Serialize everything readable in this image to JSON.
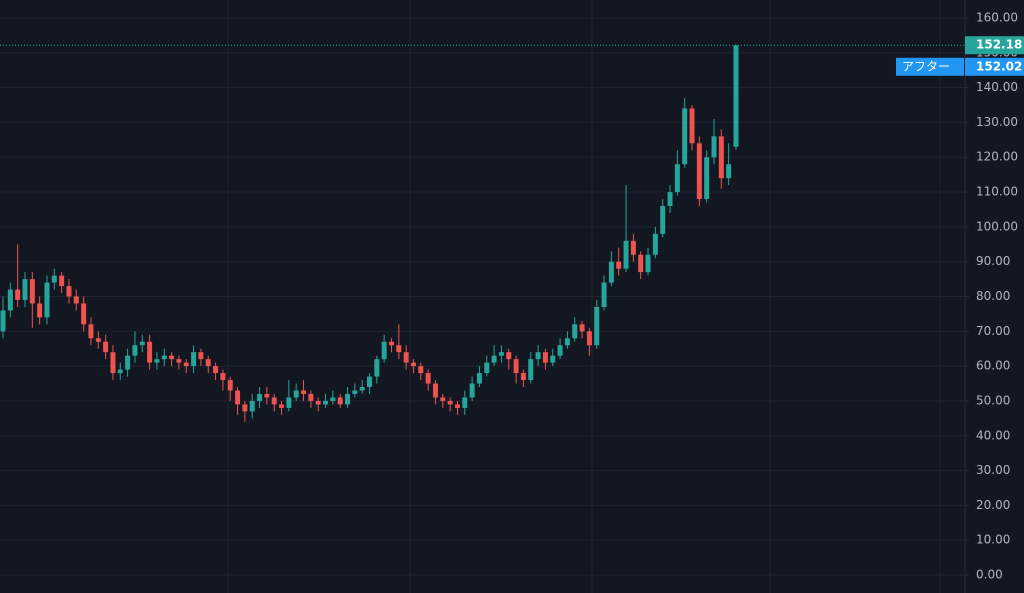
{
  "chart_data": {
    "type": "candlestick",
    "categories": [
      null,
      null,
      null,
      null,
      null,
      null,
      null,
      null,
      null,
      null,
      null,
      null,
      null,
      null,
      null,
      null,
      null,
      null,
      null,
      null,
      null,
      null,
      null,
      null,
      null,
      null,
      null,
      null,
      null,
      null,
      null,
      null,
      null,
      null,
      null,
      null,
      null,
      null,
      null,
      null,
      null,
      null,
      null,
      null,
      null,
      null,
      null,
      null,
      null,
      null,
      null,
      null,
      null,
      null,
      null,
      null,
      null,
      null,
      null,
      null,
      null,
      null,
      null,
      null,
      null,
      null,
      null,
      null,
      null,
      null,
      null,
      null,
      null,
      null,
      null,
      null,
      null,
      null,
      null,
      null,
      null,
      null,
      null,
      null,
      null,
      null,
      null,
      null,
      null,
      null,
      null,
      null,
      null,
      null,
      null,
      null,
      null,
      null,
      null,
      null,
      null
    ],
    "open": [
      70,
      76,
      82,
      79,
      85,
      78,
      74,
      84,
      86,
      83,
      80,
      78,
      72,
      68,
      67,
      64,
      58,
      59,
      63,
      66,
      67,
      61,
      62,
      63,
      62,
      61,
      60,
      64,
      62,
      60,
      58,
      56,
      53,
      49,
      47,
      50,
      52,
      51,
      49,
      48,
      51,
      53,
      52,
      50,
      49,
      50,
      51,
      49,
      52,
      53,
      54,
      57,
      62,
      67,
      66,
      64,
      61,
      60,
      58,
      55,
      51,
      50,
      49,
      48,
      51,
      55,
      58,
      61,
      63,
      64,
      62,
      58,
      56,
      62,
      64,
      61,
      63,
      66,
      68,
      72,
      70,
      66,
      77,
      84,
      90,
      88,
      96,
      92,
      87,
      92,
      98,
      106,
      110,
      118,
      134,
      124,
      108,
      120,
      126,
      114,
      123
    ],
    "high": [
      80,
      84,
      95,
      87,
      87,
      80,
      86,
      88,
      87,
      85,
      82,
      80,
      74,
      70,
      69,
      66,
      61,
      65,
      70,
      69,
      69,
      64,
      65,
      64,
      63,
      62,
      66,
      65,
      63,
      61,
      59,
      57,
      54,
      50,
      52,
      54,
      54,
      52,
      50,
      56,
      55,
      56,
      53,
      51,
      52,
      53,
      52,
      54,
      55,
      56,
      58,
      63,
      69,
      68,
      72,
      66,
      62,
      61,
      59,
      56,
      52,
      51,
      50,
      53,
      57,
      60,
      63,
      66,
      66,
      65,
      63,
      59,
      64,
      66,
      65,
      65,
      68,
      70,
      74,
      73,
      71,
      79,
      86,
      93,
      94,
      112,
      98,
      93,
      94,
      100,
      108,
      112,
      122,
      137,
      135,
      126,
      122,
      131,
      128,
      124,
      152.18
    ],
    "low": [
      68,
      74,
      77,
      77,
      71,
      72,
      72,
      82,
      81,
      78,
      76,
      70,
      66,
      65,
      62,
      56,
      56,
      57,
      61,
      64,
      59,
      59,
      60,
      60,
      59,
      58,
      58,
      60,
      58,
      56,
      53,
      50,
      46,
      44,
      45,
      48,
      49,
      47,
      46,
      47,
      50,
      50,
      48,
      47,
      48,
      49,
      48,
      48,
      51,
      52,
      52,
      55,
      61,
      64,
      62,
      59,
      58,
      56,
      53,
      49,
      48,
      47,
      46,
      46,
      50,
      54,
      57,
      60,
      61,
      59,
      55,
      54,
      55,
      60,
      59,
      60,
      62,
      65,
      67,
      68,
      63,
      65,
      76,
      83,
      86,
      87,
      90,
      85,
      86,
      91,
      97,
      104,
      109,
      117,
      122,
      106,
      107,
      118,
      111,
      112,
      122
    ],
    "close": [
      76,
      82,
      79,
      85,
      78,
      74,
      84,
      86,
      83,
      80,
      78,
      72,
      68,
      67,
      64,
      58,
      59,
      63,
      66,
      67,
      61,
      62,
      63,
      62,
      61,
      60,
      64,
      62,
      60,
      58,
      56,
      53,
      49,
      47,
      50,
      52,
      51,
      49,
      48,
      51,
      53,
      52,
      50,
      49,
      50,
      51,
      49,
      52,
      53,
      54,
      57,
      62,
      67,
      66,
      64,
      61,
      60,
      58,
      55,
      51,
      50,
      49,
      48,
      51,
      55,
      58,
      61,
      63,
      64,
      62,
      58,
      56,
      62,
      64,
      61,
      63,
      66,
      68,
      72,
      70,
      66,
      77,
      84,
      90,
      88,
      96,
      92,
      87,
      92,
      98,
      106,
      110,
      118,
      134,
      124,
      108,
      120,
      126,
      114,
      118,
      152.18
    ],
    "up_color": "#26a69a",
    "down_color": "#ef5350",
    "ylim": [
      -5.17,
      165.17
    ],
    "yticks": [
      {
        "value": 0,
        "label": "0.00"
      },
      {
        "value": 10,
        "label": "10.00"
      },
      {
        "value": 20,
        "label": "20.00"
      },
      {
        "value": 30,
        "label": "30.00"
      },
      {
        "value": 40,
        "label": "40.00"
      },
      {
        "value": 50,
        "label": "50.00"
      },
      {
        "value": 60,
        "label": "60.00"
      },
      {
        "value": 70,
        "label": "70.00"
      },
      {
        "value": 80,
        "label": "80.00"
      },
      {
        "value": 90,
        "label": "90.00"
      },
      {
        "value": 100,
        "label": "100.00"
      },
      {
        "value": 110,
        "label": "110.00"
      },
      {
        "value": 120,
        "label": "120.00"
      },
      {
        "value": 130,
        "label": "130.00"
      },
      {
        "value": 140,
        "label": "140.00"
      },
      {
        "value": 150,
        "label": "150.00"
      },
      {
        "value": 160,
        "label": "160.00"
      }
    ],
    "grid": true,
    "last_price": 152.18,
    "after_label": "アフター",
    "after_price": 152.02
  }
}
